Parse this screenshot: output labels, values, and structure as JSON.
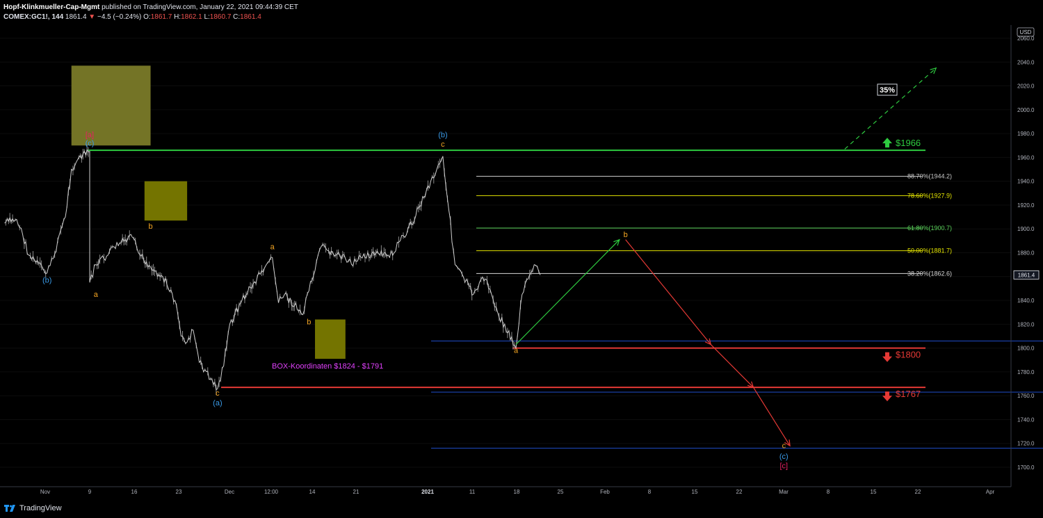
{
  "header": {
    "publisher": "Hopf-Klinkmueller-Cap-Mgmt",
    "published_text": "published on TradingView.com, January 22, 2021 09:44:39 CET",
    "symbol": "COMEX:GC1!, 144",
    "last": "1861.4",
    "change_arrow": "▼",
    "change": "−4.5 (−0.24%)",
    "o_label": "O:",
    "o": "1861.7",
    "h_label": "H:",
    "h": "1862.1",
    "l_label": "L:",
    "l": "1860.7",
    "c_label": "C:",
    "c": "1861.4"
  },
  "footer": {
    "brand": "TradingView"
  },
  "chart_data": {
    "type": "candlestick",
    "currency": "USD",
    "price_scale": {
      "ylim": [
        1690,
        2070
      ],
      "ticks": [
        1700,
        1720,
        1740,
        1760,
        1780,
        1800,
        1820,
        1840,
        1860,
        1880,
        1900,
        1920,
        1940,
        1960,
        1980,
        2000,
        2020,
        2040,
        2060
      ],
      "last_price": "1861.4"
    },
    "time_ticks": [
      "Nov",
      "9",
      "16",
      "23",
      "Dec",
      "12:00",
      "14",
      "21",
      "2021",
      "11",
      "18",
      "25",
      "Feb",
      "8",
      "15",
      "22",
      "Mar",
      "8",
      "15",
      "22",
      "Apr"
    ],
    "price_path": [
      [
        "2020-10-26",
        1905
      ],
      [
        "2020-10-28",
        1908
      ],
      [
        "2020-10-29",
        1895
      ],
      [
        "2020-10-30",
        1878
      ],
      [
        "2020-11-02",
        1863
      ],
      [
        "2020-11-03",
        1875
      ],
      [
        "2020-11-04",
        1895
      ],
      [
        "2020-11-05",
        1910
      ],
      [
        "2020-11-06",
        1950
      ],
      [
        "2020-11-07",
        1958
      ],
      [
        "2020-11-09",
        1965
      ],
      [
        "2020-11-09",
        1855
      ],
      [
        "2020-11-10",
        1870
      ],
      [
        "2020-11-12",
        1878
      ],
      [
        "2020-11-13",
        1885
      ],
      [
        "2020-11-16",
        1893
      ],
      [
        "2020-11-17",
        1880
      ],
      [
        "2020-11-19",
        1868
      ],
      [
        "2020-11-21",
        1860
      ],
      [
        "2020-11-23",
        1840
      ],
      [
        "2020-11-24",
        1810
      ],
      [
        "2020-11-25",
        1805
      ],
      [
        "2020-11-26",
        1815
      ],
      [
        "2020-11-27",
        1788
      ],
      [
        "2020-11-30",
        1766
      ],
      [
        "2020-12-01",
        1785
      ],
      [
        "2020-12-02",
        1820
      ],
      [
        "2020-12-04",
        1840
      ],
      [
        "2020-12-07",
        1862
      ],
      [
        "2020-12-08",
        1870
      ],
      [
        "2020-12-09",
        1876
      ],
      [
        "2020-12-10",
        1838
      ],
      [
        "2020-12-11",
        1845
      ],
      [
        "2020-12-14",
        1828
      ],
      [
        "2020-12-15",
        1848
      ],
      [
        "2020-12-16",
        1865
      ],
      [
        "2020-12-17",
        1885
      ],
      [
        "2020-12-18",
        1882
      ],
      [
        "2020-12-21",
        1875
      ],
      [
        "2020-12-22",
        1870
      ],
      [
        "2020-12-23",
        1873
      ],
      [
        "2020-12-24",
        1879
      ],
      [
        "2020-12-28",
        1878
      ],
      [
        "2020-12-29",
        1880
      ],
      [
        "2020-12-30",
        1890
      ],
      [
        "2020-12-31",
        1895
      ],
      [
        "2021-01-04",
        1940
      ],
      [
        "2021-01-05",
        1950
      ],
      [
        "2021-01-06",
        1961
      ],
      [
        "2021-01-07",
        1915
      ],
      [
        "2021-01-08",
        1870
      ],
      [
        "2021-01-11",
        1845
      ],
      [
        "2021-01-12",
        1855
      ],
      [
        "2021-01-13",
        1858
      ],
      [
        "2021-01-14",
        1845
      ],
      [
        "2021-01-15",
        1830
      ],
      [
        "2021-01-18",
        1800
      ],
      [
        "2021-01-19",
        1845
      ],
      [
        "2021-01-20",
        1858
      ],
      [
        "2021-01-21",
        1870
      ],
      [
        "2021-01-22",
        1861.4
      ]
    ],
    "horizontal_levels": [
      {
        "price": 1966,
        "label": "$1966",
        "color": "#2ecc40"
      },
      {
        "price": 1800,
        "label": "$1800",
        "color": "#e53935"
      },
      {
        "price": 1767,
        "label": "$1767",
        "color": "#e53935"
      }
    ],
    "info_lines": [
      1806,
      1763,
      1716
    ],
    "fibonacci": [
      {
        "label": "88.70%(1944.2)",
        "price": 1944.2,
        "color": "#c8c8c8"
      },
      {
        "label": "78.60%(1927.9)",
        "price": 1927.9,
        "color": "#e6e600"
      },
      {
        "label": "61.80%(1900.7)",
        "price": 1900.7,
        "color": "#5cd65c"
      },
      {
        "label": "50.00%(1881.7)",
        "price": 1881.7,
        "color": "#e6e600"
      },
      {
        "label": "38.20%(1862.6)",
        "price": 1862.6,
        "color": "#d8d8d8"
      }
    ],
    "boxes": [
      {
        "from": "2020-11-06",
        "to": "2020-11-19",
        "top": 2037,
        "bottom": 1970,
        "color": "#7a7a28"
      },
      {
        "from": "2020-11-18",
        "to": "2020-11-25",
        "top": 1940,
        "bottom": 1907,
        "color": "#7a7a00"
      },
      {
        "from": "2020-12-16",
        "to": "2020-12-21",
        "top": 1824,
        "bottom": 1791,
        "color": "#7a7a00"
      }
    ],
    "annotation_box_text": "BOX-Koordinaten $1824 - $1791",
    "percent_tag": "35%",
    "wave_labels": [
      {
        "text": "(b)",
        "date": "2020-11-02",
        "price": 1855,
        "color": "#3a9be8"
      },
      {
        "text": "[a]",
        "date": "2020-11-09",
        "price": 1977,
        "color": "#e91e63"
      },
      {
        "text": "(c)",
        "date": "2020-11-09",
        "price": 1970,
        "color": "#3a9be8"
      },
      {
        "text": "a",
        "date": "2020-11-10",
        "price": 1843,
        "color": "#f5a623"
      },
      {
        "text": "b",
        "date": "2020-11-19",
        "price": 1900,
        "color": "#f5a623"
      },
      {
        "text": "c",
        "date": "2020-11-30",
        "price": 1760,
        "color": "#f5a623"
      },
      {
        "text": "(a)",
        "date": "2020-11-30",
        "price": 1752,
        "color": "#3a9be8"
      },
      {
        "text": "a",
        "date": "2020-12-09",
        "price": 1883,
        "color": "#f5a623"
      },
      {
        "text": "b",
        "date": "2020-12-15",
        "price": 1820,
        "color": "#f5a623"
      },
      {
        "text": "(b)",
        "date": "2021-01-06",
        "price": 1977,
        "color": "#3a9be8"
      },
      {
        "text": "c",
        "date": "2021-01-06",
        "price": 1969,
        "color": "#f5a623"
      },
      {
        "text": "a",
        "date": "2021-01-18",
        "price": 1796,
        "color": "#f5a623"
      },
      {
        "text": "b",
        "date": "2021-02-05",
        "price": 1893,
        "color": "#f5a623"
      },
      {
        "text": "c",
        "date": "2021-03-03",
        "price": 1716,
        "color": "#f5a623"
      },
      {
        "text": "(c)",
        "date": "2021-03-03",
        "price": 1707,
        "color": "#3a9be8"
      },
      {
        "text": "[c]",
        "date": "2021-03-03",
        "price": 1699,
        "color": "#e91e63"
      }
    ],
    "projection_arrows": [
      {
        "from": [
          "2021-01-18",
          1803
        ],
        "to": [
          "2021-02-04",
          1891
        ],
        "color": "#2ecc40",
        "dashed": false
      },
      {
        "from": [
          "2021-02-05",
          1891
        ],
        "to": [
          "2021-02-19",
          1803
        ],
        "color": "#e53935",
        "dashed": false
      },
      {
        "from": [
          "2021-02-19",
          1803
        ],
        "to": [
          "2021-02-26",
          1767
        ],
        "color": "#e53935",
        "dashed": false
      },
      {
        "from": [
          "2021-02-26",
          1767
        ],
        "to": [
          "2021-03-04",
          1718
        ],
        "color": "#e53935",
        "dashed": false
      },
      {
        "from": [
          "2021-03-13",
          1967
        ],
        "to": [
          "2021-03-28",
          2035
        ],
        "color": "#2ecc40",
        "dashed": true
      }
    ]
  }
}
